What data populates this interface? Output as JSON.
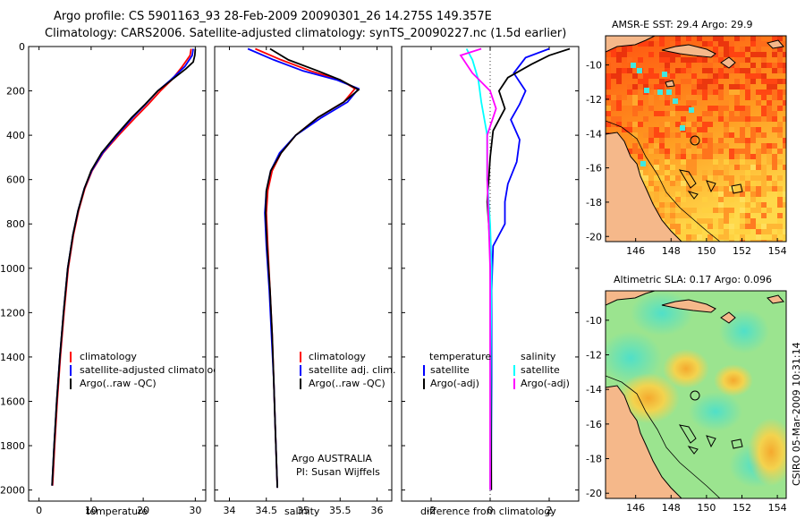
{
  "header": {
    "line1": "Argo profile: CS 5901163_93 28-Feb-2009 20090301_26 14.275S 149.357E",
    "line2": "Climatology: CARS2006. Satellite-adjusted climatology: synTS_20090227.nc (1.5d earlier)"
  },
  "credit": {
    "argo": "Argo AUSTRALIA",
    "pi": "PI: Susan Wijffels",
    "stamp": "CSIRO 05-Mar-2009 10:31:14"
  },
  "chart_data": [
    {
      "type": "line",
      "id": "temperature",
      "xlabel": "temperature",
      "ylabel": "",
      "xlim": [
        -2,
        32
      ],
      "ylim": [
        2050,
        0
      ],
      "xticks": [
        0,
        10,
        20,
        30
      ],
      "yticks": [
        0,
        200,
        400,
        600,
        800,
        1000,
        1200,
        1400,
        1600,
        1800,
        2000
      ],
      "legend": [
        "climatology",
        "satellite-adjusted climatology",
        "Argo(..raw -QC)"
      ],
      "series": [
        {
          "name": "climatology",
          "color": "#ff0000",
          "points": [
            [
              29.2,
              10
            ],
            [
              29.0,
              40
            ],
            [
              27.5,
              90
            ],
            [
              25.5,
              150
            ],
            [
              23.3,
              200
            ],
            [
              21,
              260
            ],
            [
              18.5,
              320
            ],
            [
              15.3,
              400
            ],
            [
              12.3,
              480
            ],
            [
              10.2,
              560
            ],
            [
              8.8,
              640
            ],
            [
              7.6,
              740
            ],
            [
              6.6,
              850
            ],
            [
              5.6,
              1000
            ],
            [
              4.8,
              1200
            ],
            [
              4.1,
              1400
            ],
            [
              3.5,
              1600
            ],
            [
              3.0,
              1800
            ],
            [
              2.6,
              1980
            ]
          ]
        },
        {
          "name": "satellite-adjusted climatology",
          "color": "#0000ff",
          "points": [
            [
              29.6,
              10
            ],
            [
              29.4,
              40
            ],
            [
              28.0,
              90
            ],
            [
              25.3,
              150
            ],
            [
              22.8,
              200
            ],
            [
              20.5,
              260
            ],
            [
              18.0,
              320
            ],
            [
              15.0,
              400
            ],
            [
              12.2,
              480
            ],
            [
              10.1,
              560
            ],
            [
              8.7,
              640
            ],
            [
              7.5,
              740
            ],
            [
              6.5,
              850
            ],
            [
              5.5,
              1000
            ],
            [
              4.7,
              1200
            ],
            [
              4.0,
              1400
            ],
            [
              3.4,
              1600
            ],
            [
              2.9,
              1800
            ],
            [
              2.5,
              1980
            ]
          ]
        },
        {
          "name": "Argo(..raw -QC)",
          "color": "#000000",
          "points": [
            [
              30.0,
              10
            ],
            [
              29.9,
              40
            ],
            [
              29.6,
              70
            ],
            [
              28.2,
              100
            ],
            [
              25.5,
              150
            ],
            [
              22.8,
              200
            ],
            [
              20.4,
              260
            ],
            [
              17.8,
              320
            ],
            [
              14.8,
              400
            ],
            [
              12.0,
              480
            ],
            [
              10.0,
              560
            ],
            [
              8.7,
              640
            ],
            [
              7.5,
              740
            ],
            [
              6.5,
              850
            ],
            [
              5.5,
              1000
            ],
            [
              4.7,
              1200
            ],
            [
              4.0,
              1400
            ],
            [
              3.4,
              1600
            ],
            [
              2.9,
              1800
            ],
            [
              2.5,
              1980
            ]
          ]
        }
      ]
    },
    {
      "type": "line",
      "id": "salinity",
      "xlabel": "salinity",
      "ylabel": "",
      "xlim": [
        33.8,
        36.2
      ],
      "ylim": [
        2050,
        0
      ],
      "xticks": [
        34,
        34.5,
        35,
        35.5,
        36
      ],
      "yticks": [
        0,
        200,
        400,
        600,
        800,
        1000,
        1200,
        1400,
        1600,
        1800,
        2000
      ],
      "legend": [
        "climatology",
        "satellite adj. clim.",
        "Argo(..raw -QC)"
      ],
      "series": [
        {
          "name": "climatology",
          "color": "#ff0000",
          "points": [
            [
              34.35,
              10
            ],
            [
              34.7,
              60
            ],
            [
              35.1,
              110
            ],
            [
              35.5,
              150
            ],
            [
              35.7,
              190
            ],
            [
              35.55,
              250
            ],
            [
              35.2,
              320
            ],
            [
              34.9,
              400
            ],
            [
              34.7,
              480
            ],
            [
              34.58,
              560
            ],
            [
              34.52,
              650
            ],
            [
              34.5,
              750
            ],
            [
              34.52,
              900
            ],
            [
              34.55,
              1100
            ],
            [
              34.58,
              1300
            ],
            [
              34.6,
              1500
            ],
            [
              34.62,
              1700
            ],
            [
              34.64,
              1900
            ],
            [
              34.65,
              1990
            ]
          ]
        },
        {
          "name": "satellite adj. clim.",
          "color": "#0000ff",
          "points": [
            [
              34.25,
              10
            ],
            [
              34.6,
              60
            ],
            [
              35.0,
              110
            ],
            [
              35.45,
              150
            ],
            [
              35.75,
              190
            ],
            [
              35.6,
              250
            ],
            [
              35.25,
              320
            ],
            [
              34.9,
              400
            ],
            [
              34.68,
              480
            ],
            [
              34.56,
              560
            ],
            [
              34.5,
              650
            ],
            [
              34.48,
              750
            ],
            [
              34.5,
              900
            ],
            [
              34.54,
              1100
            ],
            [
              34.57,
              1300
            ],
            [
              34.6,
              1500
            ],
            [
              34.62,
              1700
            ],
            [
              34.64,
              1900
            ],
            [
              34.65,
              1990
            ]
          ]
        },
        {
          "name": "Argo(..raw -QC)",
          "color": "#000000",
          "points": [
            [
              34.55,
              10
            ],
            [
              34.8,
              60
            ],
            [
              35.2,
              110
            ],
            [
              35.5,
              150
            ],
            [
              35.75,
              195
            ],
            [
              35.55,
              250
            ],
            [
              35.2,
              320
            ],
            [
              34.9,
              400
            ],
            [
              34.7,
              480
            ],
            [
              34.56,
              560
            ],
            [
              34.5,
              650
            ],
            [
              34.49,
              750
            ],
            [
              34.51,
              900
            ],
            [
              34.55,
              1100
            ],
            [
              34.58,
              1300
            ],
            [
              34.6,
              1500
            ],
            [
              34.62,
              1700
            ],
            [
              34.64,
              1900
            ],
            [
              34.65,
              1990
            ]
          ]
        }
      ]
    },
    {
      "type": "line",
      "id": "difference",
      "xlabel": "difference from climatology",
      "ylabel": "",
      "xlim": [
        -3,
        3
      ],
      "ylim": [
        2050,
        0
      ],
      "xticks": [
        -2,
        0,
        2
      ],
      "yticks": [
        0,
        200,
        400,
        600,
        800,
        1000,
        1200,
        1400,
        1600,
        1800,
        2000
      ],
      "legend_left_title": "temperature",
      "legend_right_title": "salinity",
      "legend": [
        "satellite",
        "Argo(-adj)",
        "satellite",
        "Argo(-adj)"
      ],
      "series": [
        {
          "name": "temperature satellite",
          "color": "#0000ff",
          "points": [
            [
              2.0,
              10
            ],
            [
              1.2,
              50
            ],
            [
              0.8,
              120
            ],
            [
              1.2,
              200
            ],
            [
              1.0,
              260
            ],
            [
              0.7,
              330
            ],
            [
              1.0,
              420
            ],
            [
              0.9,
              520
            ],
            [
              0.6,
              620
            ],
            [
              0.5,
              700
            ],
            [
              0.5,
              800
            ],
            [
              0.1,
              900
            ],
            [
              0.05,
              1100
            ],
            [
              0.05,
              1500
            ],
            [
              0.03,
              2000
            ]
          ]
        },
        {
          "name": "temperature Argo(-adj)",
          "color": "#000000",
          "points": [
            [
              2.7,
              10
            ],
            [
              2.0,
              40
            ],
            [
              1.4,
              80
            ],
            [
              0.6,
              140
            ],
            [
              0.3,
              200
            ],
            [
              0.5,
              280
            ],
            [
              0.1,
              380
            ],
            [
              0.0,
              500
            ],
            [
              -0.05,
              600
            ],
            [
              -0.1,
              700
            ],
            [
              -0.05,
              800
            ],
            [
              0.0,
              900
            ],
            [
              0.02,
              1200
            ],
            [
              0.03,
              1600
            ],
            [
              0.04,
              2000
            ]
          ]
        },
        {
          "name": "salinity satellite",
          "color": "#00ffff",
          "points": [
            [
              -0.8,
              10
            ],
            [
              -0.6,
              60
            ],
            [
              -0.4,
              150
            ],
            [
              -0.3,
              250
            ],
            [
              -0.1,
              400
            ],
            [
              -0.1,
              600
            ],
            [
              0.0,
              800
            ],
            [
              0.05,
              1000
            ],
            [
              0.02,
              1400
            ],
            [
              0.0,
              2000
            ]
          ]
        },
        {
          "name": "salinity Argo(-adj)",
          "color": "#ff00ff",
          "points": [
            [
              -0.3,
              10
            ],
            [
              -1.0,
              40
            ],
            [
              -0.6,
              120
            ],
            [
              0.0,
              200
            ],
            [
              0.2,
              280
            ],
            [
              -0.1,
              400
            ],
            [
              -0.1,
              600
            ],
            [
              -0.05,
              800
            ],
            [
              0.0,
              1000
            ],
            [
              0.0,
              2000
            ]
          ]
        }
      ]
    },
    {
      "type": "heatmap",
      "id": "sst-map",
      "title": "AMSR-E SST: 29.4 Argo: 29.9",
      "xlim": [
        144.3,
        154.5
      ],
      "ylim": [
        -20.3,
        -8.3
      ],
      "xticks": [
        146,
        148,
        150,
        152,
        154
      ],
      "yticks": [
        -10,
        -12,
        -14,
        -16,
        -18,
        -20
      ],
      "marker": {
        "lon": 149.357,
        "lat": -14.275
      }
    },
    {
      "type": "heatmap",
      "id": "sla-map",
      "title": "Altimetric SLA: 0.17 Argo: 0.096",
      "xlim": [
        144.3,
        154.5
      ],
      "ylim": [
        -20.3,
        -8.3
      ],
      "xticks": [
        146,
        148,
        150,
        152,
        154
      ],
      "yticks": [
        -10,
        -12,
        -14,
        -16,
        -18,
        -20
      ],
      "marker": {
        "lon": 149.357,
        "lat": -14.275
      }
    }
  ]
}
